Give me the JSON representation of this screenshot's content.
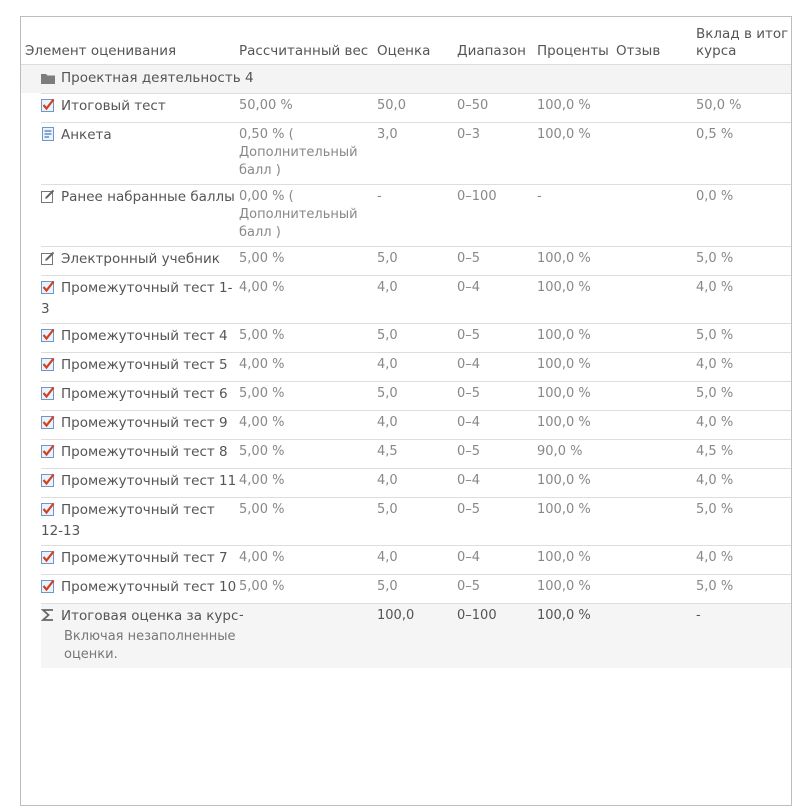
{
  "columns": {
    "item": "Элемент оценивания",
    "weight": "Рассчитанный вес",
    "grade": "Оценка",
    "range": "Диапазон",
    "percent": "Проценты",
    "feedback": "Отзыв",
    "contribution": "Вклад в итог курса"
  },
  "category": {
    "name": "Проектная деятельность 4",
    "icon": "folder-icon"
  },
  "items": [
    {
      "icon": "quiz-icon",
      "name": "Итоговый тест",
      "weight": "50,00 %",
      "grade": "50,0",
      "range": "0–50",
      "percent": "100,0 %",
      "feedback": "",
      "contribution": "50,0 %"
    },
    {
      "icon": "feedback-icon",
      "name": "Анкета",
      "weight": "0,50 % ( Дополнительный балл )",
      "grade": "3,0",
      "range": "0–3",
      "percent": "100,0 %",
      "feedback": "",
      "contribution": "0,5 %"
    },
    {
      "icon": "manual-item-icon",
      "name": "Ранее набранные баллы",
      "weight": "0,00 % ( Дополнительный балл )",
      "grade": "-",
      "range": "0–100",
      "percent": "-",
      "feedback": "",
      "contribution": "0,0 %"
    },
    {
      "icon": "manual-item-icon",
      "name": "Электронный учебник",
      "weight": "5,00 %",
      "grade": "5,0",
      "range": "0–5",
      "percent": "100,0 %",
      "feedback": "",
      "contribution": "5,0 %"
    },
    {
      "icon": "quiz-icon",
      "name": "Промежуточный тест 1-3",
      "weight": "4,00 %",
      "grade": "4,0",
      "range": "0–4",
      "percent": "100,0 %",
      "feedback": "",
      "contribution": "4,0 %"
    },
    {
      "icon": "quiz-icon",
      "name": "Промежуточный тест 4",
      "weight": "5,00 %",
      "grade": "5,0",
      "range": "0–5",
      "percent": "100,0 %",
      "feedback": "",
      "contribution": "5,0 %"
    },
    {
      "icon": "quiz-icon",
      "name": "Промежуточный тест 5",
      "weight": "4,00 %",
      "grade": "4,0",
      "range": "0–4",
      "percent": "100,0 %",
      "feedback": "",
      "contribution": "4,0 %"
    },
    {
      "icon": "quiz-icon",
      "name": "Промежуточный тест 6",
      "weight": "5,00 %",
      "grade": "5,0",
      "range": "0–5",
      "percent": "100,0 %",
      "feedback": "",
      "contribution": "5,0 %"
    },
    {
      "icon": "quiz-icon",
      "name": "Промежуточный тест 9",
      "weight": "4,00 %",
      "grade": "4,0",
      "range": "0–4",
      "percent": "100,0 %",
      "feedback": "",
      "contribution": "4,0 %"
    },
    {
      "icon": "quiz-icon",
      "name": "Промежуточный тест 8",
      "weight": "5,00 %",
      "grade": "4,5",
      "range": "0–5",
      "percent": "90,0 %",
      "feedback": "",
      "contribution": "4,5 %"
    },
    {
      "icon": "quiz-icon",
      "name": "Промежуточный тест 11",
      "weight": "4,00 %",
      "grade": "4,0",
      "range": "0–4",
      "percent": "100,0 %",
      "feedback": "",
      "contribution": "4,0 %"
    },
    {
      "icon": "quiz-icon",
      "name": "Промежуточный тест 12-13",
      "weight": "5,00 %",
      "grade": "5,0",
      "range": "0–5",
      "percent": "100,0 %",
      "feedback": "",
      "contribution": "5,0 %"
    },
    {
      "icon": "quiz-icon",
      "name": "Промежуточный тест 7",
      "weight": "4,00 %",
      "grade": "4,0",
      "range": "0–4",
      "percent": "100,0 %",
      "feedback": "",
      "contribution": "4,0 %"
    },
    {
      "icon": "quiz-icon",
      "name": "Промежуточный тест 10",
      "weight": "5,00 %",
      "grade": "5,0",
      "range": "0–5",
      "percent": "100,0 %",
      "feedback": "",
      "contribution": "5,0 %"
    }
  ],
  "total": {
    "icon": "sigma-icon",
    "name": "Итоговая оценка за курс",
    "note": "Включая незаполненные оценки.",
    "weight": "-",
    "grade": "100,0",
    "range": "0–100",
    "percent": "100,0 %",
    "feedback": "",
    "contribution": "-"
  }
}
